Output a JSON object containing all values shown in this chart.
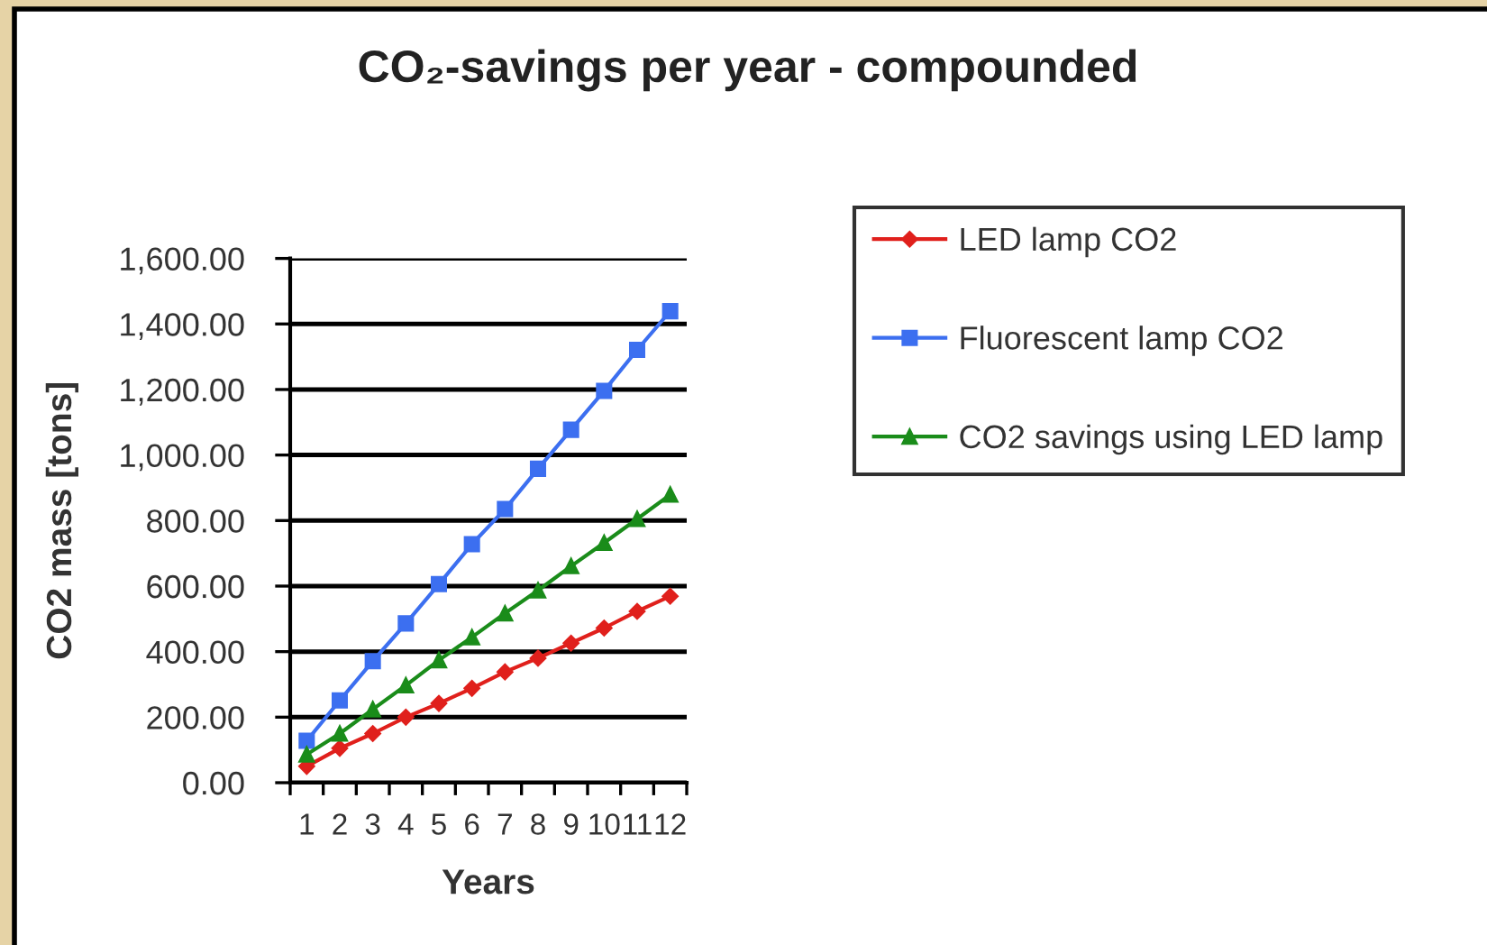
{
  "chart_data": {
    "type": "line",
    "title": "CO₂-savings per year - compounded",
    "xlabel": "Years",
    "ylabel": "CO2 mass [tons]",
    "categories": [
      "1",
      "2",
      "3",
      "4",
      "5",
      "6",
      "7",
      "8",
      "9",
      "10",
      "11",
      "12"
    ],
    "series": [
      {
        "name": "LED lamp CO2",
        "color": "#e0201c",
        "marker": "diamond",
        "values": [
          50,
          105,
          150,
          200,
          242,
          288,
          338,
          380,
          426,
          472,
          523,
          569
        ]
      },
      {
        "name": "Fluorescent lamp CO2",
        "color": "#3c6ff0",
        "marker": "square",
        "values": [
          128,
          251,
          371,
          486,
          606,
          728,
          835,
          958,
          1077,
          1196,
          1321,
          1439
        ]
      },
      {
        "name": "CO2 savings using LED lamp",
        "color": "#1a8c1a",
        "marker": "triangle",
        "values": [
          86,
          150,
          224,
          297,
          374,
          444,
          517,
          587,
          661,
          732,
          805,
          879
        ]
      }
    ],
    "ylim": [
      0,
      1600
    ],
    "yticks": [
      {
        "value": 0,
        "label": "0.00"
      },
      {
        "value": 200,
        "label": "200.00"
      },
      {
        "value": 400,
        "label": "400.00"
      },
      {
        "value": 600,
        "label": "600.00"
      },
      {
        "value": 800,
        "label": "800.00"
      },
      {
        "value": 1000,
        "label": "1,000.00"
      },
      {
        "value": 1200,
        "label": "1,200.00"
      },
      {
        "value": 1400,
        "label": "1,400.00"
      },
      {
        "value": 1600,
        "label": "1,600.00"
      }
    ],
    "grid": "y",
    "legend": "right",
    "line_style": "solid"
  }
}
